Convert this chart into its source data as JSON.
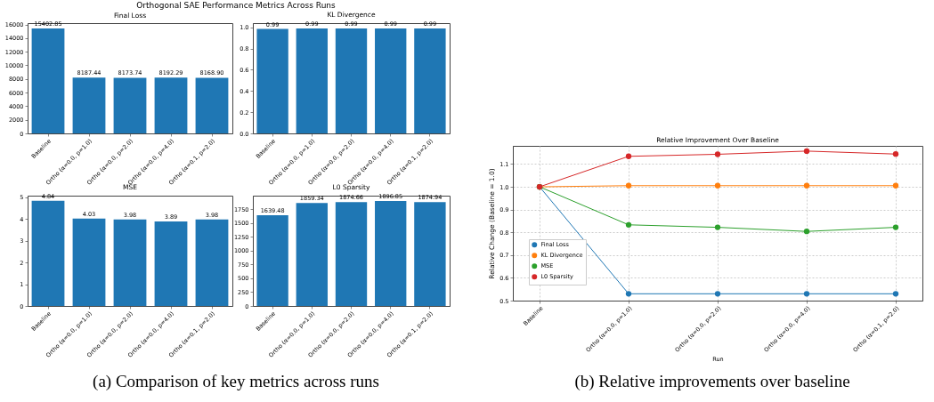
{
  "chart_data": [
    {
      "type": "bar",
      "title": "Final Loss",
      "annotations": [
        "Orthogonal SAE Performance Metrics Across Runs",
        "(a) Comparison of key metrics across runs"
      ],
      "categories": [
        "Baseline",
        "Ortho (α=0.0, p=1.0)",
        "Ortho (α=0.0, p=2.0)",
        "Ortho (α=0.0, p=4.0)",
        "Ortho (α=0.1, p=2.0)"
      ],
      "values": [
        15402.85,
        8187.44,
        8173.74,
        8192.29,
        8168.9
      ],
      "value_labels": [
        "15402.85",
        "8187.44",
        "8173.74",
        "8192.29",
        "8168.90"
      ],
      "color": "#1f77b4",
      "ylim": [
        0,
        16200
      ],
      "yticks": [
        0,
        2000,
        4000,
        6000,
        8000,
        10000,
        12000,
        14000,
        16000
      ]
    },
    {
      "type": "bar",
      "title": "KL Divergence",
      "categories": [
        "Baseline",
        "Ortho (α=0.0, p=1.0)",
        "Ortho (α=0.0, p=2.0)",
        "Ortho (α=0.0, p=4.0)",
        "Ortho (α=0.1, p=2.0)"
      ],
      "values": [
        0.985,
        0.99,
        0.99,
        0.99,
        0.99
      ],
      "value_labels": [
        "0.99",
        "0.99",
        "0.99",
        "0.99",
        "0.99"
      ],
      "color": "#1f77b4",
      "ylim": [
        0,
        1.04
      ],
      "yticks": [
        {
          "value": 0,
          "label": "0.0"
        },
        0.2,
        0.4,
        0.6,
        0.8,
        {
          "value": 1,
          "label": "1.0"
        }
      ]
    },
    {
      "type": "bar",
      "title": "MSE",
      "categories": [
        "Baseline",
        "Ortho (α=0.0, p=1.0)",
        "Ortho (α=0.0, p=2.0)",
        "Ortho (α=0.0, p=4.0)",
        "Ortho (α=0.1, p=2.0)"
      ],
      "values": [
        4.84,
        4.03,
        3.98,
        3.89,
        3.98
      ],
      "data_labels": true,
      "color": "#1f77b4",
      "ylim": [
        0,
        5.08
      ],
      "yticks": [
        0,
        1,
        2,
        3,
        4,
        5
      ]
    },
    {
      "type": "bar",
      "title": "L0 Sparsity",
      "categories": [
        "Baseline",
        "Ortho (α=0.0, p=1.0)",
        "Ortho (α=0.0, p=2.0)",
        "Ortho (α=0.0, p=4.0)",
        "Ortho (α=0.1, p=2.0)"
      ],
      "values": [
        1639.48,
        1859.34,
        1874.66,
        1896.85,
        1874.94
      ],
      "data_labels": true,
      "color": "#1f77b4",
      "ylim": [
        0,
        1992
      ],
      "yticks": [
        0,
        250,
        500,
        750,
        1000,
        1250,
        1500,
        1750
      ]
    },
    {
      "type": "line",
      "title": "Relative Improvement Over Baseline",
      "xlabel": "Run",
      "ylabel": "Relative Change (Baseline = 1.0)",
      "annotations": [
        "(b) Relative improvements over baseline"
      ],
      "categories": [
        "Baseline",
        "Ortho (α=0.0, p=1.0)",
        "Ortho (α=0.0, p=2.0)",
        "Ortho (α=0.0, p=4.0)",
        "Ortho (α=0.1, p=2.0)"
      ],
      "series": [
        {
          "name": "Final Loss",
          "color": "#1f77b4",
          "values": [
            1.0,
            0.53,
            0.53,
            0.53,
            0.53
          ]
        },
        {
          "name": "KL Divergence",
          "color": "#ff7f0e",
          "values": [
            1.0,
            1.005,
            1.005,
            1.005,
            1.005
          ]
        },
        {
          "name": "MSE",
          "color": "#2ca02c",
          "values": [
            1.0,
            0.833,
            0.822,
            0.804,
            0.822
          ]
        },
        {
          "name": "L0 Sparsity",
          "color": "#d62728",
          "values": [
            1.0,
            1.134,
            1.143,
            1.157,
            1.144
          ]
        }
      ],
      "ylim": [
        0.5,
        1.18
      ],
      "yticks": [
        {
          "value": 0.5,
          "label": "0.5"
        },
        0.6,
        0.7,
        0.8,
        0.9,
        {
          "value": 1,
          "label": "1.0"
        },
        1.1
      ],
      "grid": true,
      "legend": "bottom left",
      "marker": "circle",
      "line_style": "solid"
    }
  ]
}
